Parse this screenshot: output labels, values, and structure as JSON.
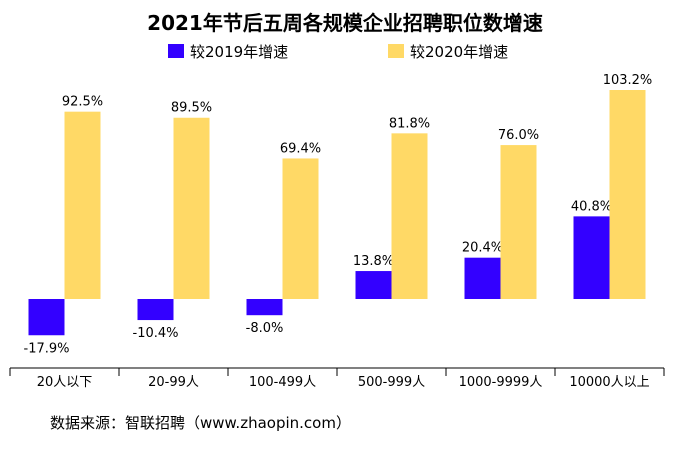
{
  "chart_data": {
    "type": "bar",
    "title": "2021年节后五周各规模企业招聘职位数增速",
    "categories": [
      "20人以下",
      "20-99人",
      "100-499人",
      "500-999人",
      "1000-9999人",
      "10000人以上"
    ],
    "series": [
      {
        "name": "较2019年增速",
        "values": [
          -17.9,
          -10.4,
          -8.0,
          13.8,
          20.4,
          40.8
        ],
        "labels": [
          "-17.9%",
          "-10.4%",
          "-8.0%",
          "13.8%",
          "20.4%",
          "40.8%"
        ],
        "color": "#3300ff"
      },
      {
        "name": "较2020年增速",
        "values": [
          92.5,
          89.5,
          69.4,
          81.8,
          76.0,
          103.2
        ],
        "labels": [
          "92.5%",
          "89.5%",
          "69.4%",
          "81.8%",
          "76.0%",
          "103.2%"
        ],
        "color": "#ffd966"
      }
    ],
    "ylim": [
      -30,
      110
    ],
    "legend_position": "top",
    "grid": false,
    "source_note": "数据来源：智联招聘（www.zhaopin.com）"
  }
}
